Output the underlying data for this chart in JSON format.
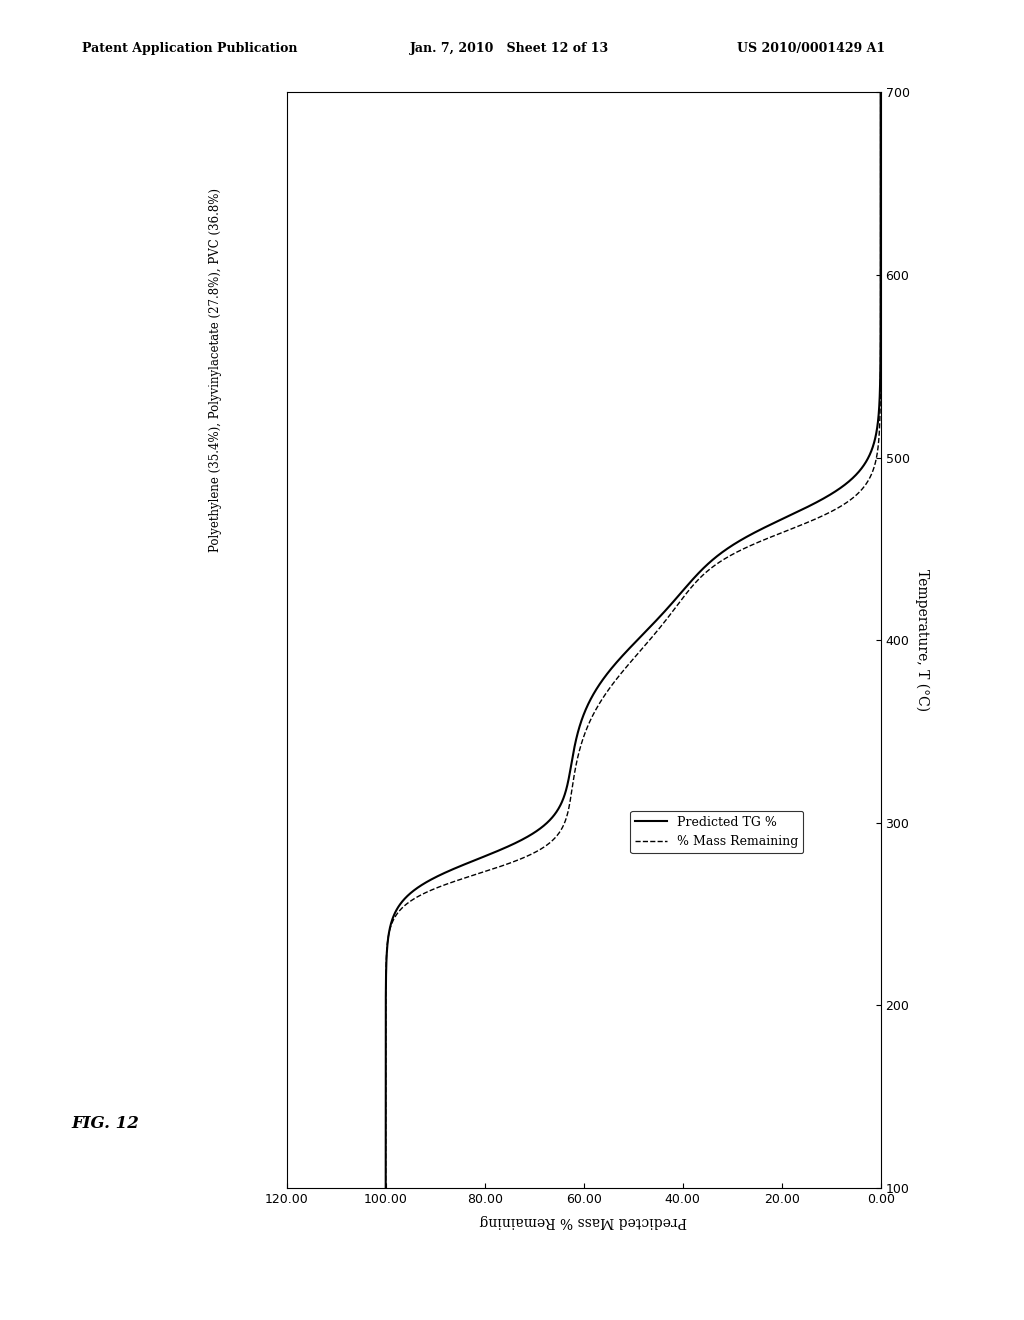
{
  "header_left": "Patent Application Publication",
  "header_mid": "Jan. 7, 2010   Sheet 12 of 13",
  "header_right": "US 2010/0001429 A1",
  "fig_label": "FIG. 12",
  "annotation": "Polyethylene (35.4%), Polyvinylacetate (27.8%), PVC (36.8%)",
  "xlabel_bottom": "Predicted Mass % Remaining",
  "ylabel_right": "Temperature, T (°C)",
  "xlim": [
    120.0,
    0.0
  ],
  "ylim": [
    100,
    700
  ],
  "xticks": [
    120.0,
    100.0,
    80.0,
    60.0,
    40.0,
    20.0,
    0.0
  ],
  "yticks": [
    100,
    200,
    300,
    400,
    500,
    600,
    700
  ],
  "legend_entries": [
    "Predicted TG %",
    "% Mass Remaining"
  ],
  "background_color": "#ffffff"
}
